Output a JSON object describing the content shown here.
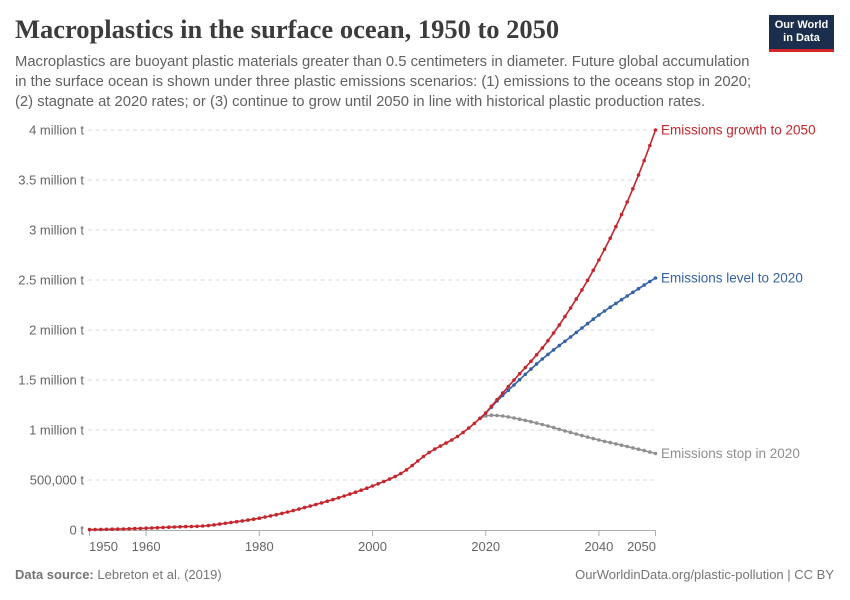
{
  "header": {
    "title": "Macroplastics in the surface ocean, 1950 to 2050",
    "subtitle_lines": [
      "Macroplastics are buoyant plastic materials greater than 0.5 centimeters in diameter. Future global accumulation",
      "in the surface ocean is shown under three plastic emissions scenarios: (1) emissions to the oceans stop in 2020;",
      "(2) stagnate at 2020 rates; or (3) continue to grow until 2050 in line with historical plastic production rates."
    ],
    "logo": {
      "line1": "Our World",
      "line2": "in Data"
    }
  },
  "footer": {
    "source_label": "Data source:",
    "source_value": "Lebreton et al. (2019)",
    "credit": "OurWorldinData.org/plastic-pollution | CC BY"
  },
  "colors": {
    "title": "#3c3c3c",
    "subtitle": "#616161",
    "axis_text": "#666666",
    "gridline": "#dadada",
    "axis_line": "#adadad",
    "logo_bg": "#1b2e4e",
    "logo_bar": "#d2262a",
    "series_growth": "#c4262e",
    "series_level": "#3561a8",
    "series_stop": "#8f8f8f"
  },
  "chart_data": {
    "type": "line",
    "title": "Macroplastics in the surface ocean, 1950 to 2050",
    "unit": "tonnes",
    "xlabel": "",
    "ylabel": "",
    "x_range": [
      1950,
      2050
    ],
    "ylim": [
      0,
      4000000
    ],
    "grid": true,
    "legend_position": "line-end-labels",
    "x_ticks": [
      {
        "year": 1950,
        "label": "1950"
      },
      {
        "year": 1960,
        "label": "1960"
      },
      {
        "year": 1980,
        "label": "1980"
      },
      {
        "year": 2000,
        "label": "2000"
      },
      {
        "year": 2020,
        "label": "2020"
      },
      {
        "year": 2040,
        "label": "2040"
      },
      {
        "year": 2050,
        "label": "2050"
      }
    ],
    "y_ticks": [
      {
        "value": 0,
        "label": "0 t"
      },
      {
        "value": 500000,
        "label": "500,000 t"
      },
      {
        "value": 1000000,
        "label": "1 million t"
      },
      {
        "value": 1500000,
        "label": "1.5 million t"
      },
      {
        "value": 2000000,
        "label": "2 million t"
      },
      {
        "value": 2500000,
        "label": "2.5 million t"
      },
      {
        "value": 3000000,
        "label": "3 million t"
      },
      {
        "value": 3500000,
        "label": "3.5 million t"
      },
      {
        "value": 4000000,
        "label": "4 million t"
      }
    ],
    "series": [
      {
        "id": "growth",
        "name": "Emissions growth to 2050",
        "color": "#c4262e",
        "start_year": 1950,
        "values": [
          4000,
          5000,
          6000,
          7000,
          8000,
          9000,
          10000,
          12000,
          14000,
          16000,
          18000,
          20000,
          23000,
          25000,
          28000,
          30000,
          32000,
          34000,
          35000,
          37000,
          40000,
          44000,
          51000,
          59000,
          67000,
          75000,
          83000,
          91000,
          99000,
          108000,
          118000,
          129000,
          141000,
          153000,
          166000,
          180000,
          194000,
          209000,
          224000,
          239000,
          255000,
          271000,
          288000,
          304000,
          322000,
          340000,
          359000,
          378000,
          398000,
          418000,
          440000,
          462000,
          485000,
          509000,
          535000,
          565000,
          601000,
          644000,
          690000,
          735000,
          775000,
          809000,
          839000,
          869000,
          900000,
          935000,
          975000,
          1019000,
          1066000,
          1117000,
          1170000,
          1237000,
          1303000,
          1369000,
          1435000,
          1500000,
          1563000,
          1625000,
          1687000,
          1752000,
          1820000,
          1893000,
          1970000,
          2050000,
          2134000,
          2220000,
          2309000,
          2401000,
          2497000,
          2597000,
          2700000,
          2807000,
          2918000,
          3034000,
          3154000,
          3280000,
          3412000,
          3550000,
          3694000,
          3845000,
          4000000
        ]
      },
      {
        "id": "level",
        "name": "Emissions level to 2020",
        "color": "#3561a8",
        "start_year": 2019,
        "note": "follows the historical curve before 2020",
        "values": [
          1117000,
          1168000,
          1228000,
          1290000,
          1345000,
          1398000,
          1450000,
          1503000,
          1557000,
          1609000,
          1661000,
          1710000,
          1756000,
          1801000,
          1844000,
          1887000,
          1930000,
          1975000,
          2020000,
          2064000,
          2108000,
          2150000,
          2190000,
          2228000,
          2266000,
          2303000,
          2340000,
          2377000,
          2413000,
          2449000,
          2485000,
          2520000
        ]
      },
      {
        "id": "stop",
        "name": "Emissions stop in 2020",
        "color": "#8f8f8f",
        "start_year": 2019,
        "note": "follows the historical curve before 2020",
        "values": [
          1117000,
          1140000,
          1148000,
          1145000,
          1140000,
          1131000,
          1120000,
          1108000,
          1096000,
          1083000,
          1069000,
          1055000,
          1040000,
          1024000,
          1007000,
          991000,
          975000,
          960000,
          944000,
          929000,
          914000,
          900000,
          886000,
          874000,
          861000,
          848000,
          835000,
          821000,
          808000,
          794000,
          779000,
          765000
        ]
      }
    ]
  }
}
